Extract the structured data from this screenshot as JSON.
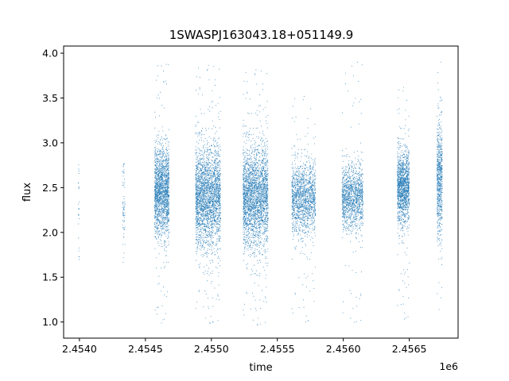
{
  "chart_data": {
    "type": "scatter",
    "title": "1SWASPJ163043.18+051149.9",
    "xlabel": "time",
    "ylabel": "flux",
    "x_offset_label": "1e6",
    "xlim": [
      2453880,
      2456870
    ],
    "ylim": [
      0.82,
      4.08
    ],
    "x_ticks": [
      2454000,
      2454500,
      2455000,
      2455500,
      2456000,
      2456500
    ],
    "x_tick_labels": [
      "2.4540",
      "2.4545",
      "2.4550",
      "2.4555",
      "2.4560",
      "2.4565"
    ],
    "y_ticks": [
      1.0,
      1.5,
      2.0,
      2.5,
      3.0,
      3.5,
      4.0
    ],
    "y_tick_labels": [
      "1.0",
      "1.5",
      "2.0",
      "2.5",
      "3.0",
      "3.5",
      "4.0"
    ],
    "grid": false,
    "legend": "none",
    "marker_color": "#1f77b4",
    "observing_seasons": [
      {
        "x_start": 2453990,
        "x_end": 2454000,
        "flux_center": 2.35,
        "flux_spread": 0.35,
        "flux_min": 1.35,
        "flux_max": 2.8,
        "points": 25
      },
      {
        "x_start": 2454325,
        "x_end": 2454345,
        "flux_center": 2.3,
        "flux_spread": 0.3,
        "flux_min": 1.55,
        "flux_max": 2.78,
        "points": 70
      },
      {
        "x_start": 2454570,
        "x_end": 2454680,
        "flux_center": 2.45,
        "flux_spread": 0.25,
        "flux_min": 0.98,
        "flux_max": 3.95,
        "points": 1800
      },
      {
        "x_start": 2454880,
        "x_end": 2455070,
        "flux_center": 2.4,
        "flux_spread": 0.28,
        "flux_min": 0.95,
        "flux_max": 3.9,
        "points": 2600
      },
      {
        "x_start": 2455240,
        "x_end": 2455430,
        "flux_center": 2.4,
        "flux_spread": 0.28,
        "flux_min": 0.93,
        "flux_max": 3.85,
        "points": 2600
      },
      {
        "x_start": 2455610,
        "x_end": 2455790,
        "flux_center": 2.38,
        "flux_spread": 0.2,
        "flux_min": 0.97,
        "flux_max": 3.55,
        "points": 1500
      },
      {
        "x_start": 2455990,
        "x_end": 2456150,
        "flux_center": 2.4,
        "flux_spread": 0.18,
        "flux_min": 0.95,
        "flux_max": 3.95,
        "points": 1300
      },
      {
        "x_start": 2456410,
        "x_end": 2456500,
        "flux_center": 2.5,
        "flux_spread": 0.2,
        "flux_min": 1.0,
        "flux_max": 3.65,
        "points": 1400
      },
      {
        "x_start": 2456710,
        "x_end": 2456750,
        "flux_center": 2.6,
        "flux_spread": 0.32,
        "flux_min": 1.05,
        "flux_max": 3.95,
        "points": 700
      }
    ]
  }
}
